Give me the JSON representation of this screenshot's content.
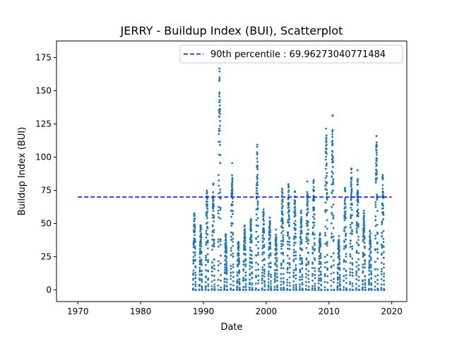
{
  "chart_data": {
    "type": "scatter",
    "title": "JERRY - Buildup Index (BUI), Scatterplot",
    "xlabel": "Date",
    "ylabel": "Buildup Index (BUI)",
    "xlim": [
      1966.6,
      2022.4
    ],
    "ylim": [
      -8.8,
      187.5
    ],
    "xticks": [
      "1970",
      "1980",
      "1990",
      "2000",
      "2010",
      "2020"
    ],
    "yticks": [
      "0",
      "25",
      "50",
      "75",
      "100",
      "125",
      "150",
      "175"
    ],
    "grid": false,
    "legend_position": "top-right",
    "colors": {
      "points": "#1f77b4",
      "reference": "#0000ff"
    },
    "reference_line": {
      "label": "90th percentile : 69.96273040771484",
      "y": 69.96273040771484,
      "x_range": [
        1970,
        2020
      ]
    },
    "seasons": [
      {
        "year": 1988,
        "peak": 61
      },
      {
        "year": 1989,
        "peak": 51
      },
      {
        "year": 1990,
        "peak": 78
      },
      {
        "year": 1991,
        "peak": 83
      },
      {
        "year": 1992,
        "peak": 170
      },
      {
        "year": 1993,
        "peak": 44
      },
      {
        "year": 1994,
        "peak": 96
      },
      {
        "year": 1995,
        "peak": 39
      },
      {
        "year": 1996,
        "peak": 52
      },
      {
        "year": 1997,
        "peak": 57
      },
      {
        "year": 1998,
        "peak": 112
      },
      {
        "year": 1999,
        "peak": 62
      },
      {
        "year": 2000,
        "peak": 57
      },
      {
        "year": 2001,
        "peak": 46
      },
      {
        "year": 2002,
        "peak": 79
      },
      {
        "year": 2003,
        "peak": 84
      },
      {
        "year": 2004,
        "peak": 76
      },
      {
        "year": 2005,
        "peak": 61
      },
      {
        "year": 2006,
        "peak": 82
      },
      {
        "year": 2007,
        "peak": 86
      },
      {
        "year": 2008,
        "peak": 48
      },
      {
        "year": 2009,
        "peak": 126
      },
      {
        "year": 2010,
        "peak": 135
      },
      {
        "year": 2011,
        "peak": 42
      },
      {
        "year": 2012,
        "peak": 80
      },
      {
        "year": 2013,
        "peak": 93
      },
      {
        "year": 2014,
        "peak": 93
      },
      {
        "year": 2015,
        "peak": 62
      },
      {
        "year": 2016,
        "peak": 47
      },
      {
        "year": 2017,
        "peak": 122
      },
      {
        "year": 2018,
        "peak": 92
      }
    ]
  }
}
